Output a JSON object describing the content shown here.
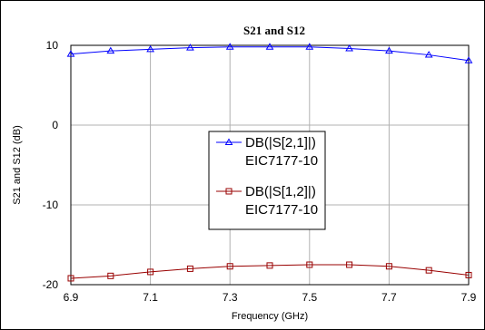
{
  "chart_data": {
    "type": "line",
    "title": "S21 and S12",
    "xlabel": "Frequency (GHz)",
    "ylabel": "S21 and S12 (dB)",
    "xlim": [
      6.9,
      7.9
    ],
    "ylim": [
      -20,
      10
    ],
    "x_ticks": [
      "6.9",
      "7.1",
      "7.3",
      "7.5",
      "7.7",
      "7.9"
    ],
    "y_ticks": [
      "10",
      "0",
      "-10",
      "-20"
    ],
    "grid": true,
    "legend_position": "center",
    "x": [
      6.9,
      7.0,
      7.1,
      7.2,
      7.3,
      7.4,
      7.5,
      7.6,
      7.7,
      7.8,
      7.9
    ],
    "series": [
      {
        "name": "DB(|S[2,1]|)",
        "subname": "EIC7177-10",
        "color": "#0000ff",
        "marker": "triangle",
        "values": [
          8.9,
          9.3,
          9.5,
          9.7,
          9.8,
          9.8,
          9.8,
          9.6,
          9.3,
          8.8,
          8.1
        ]
      },
      {
        "name": "DB(|S[1,2]|)",
        "subname": "EIC7177-10",
        "color": "#990000",
        "marker": "square",
        "values": [
          -19.2,
          -18.9,
          -18.4,
          -18.0,
          -17.7,
          -17.6,
          -17.5,
          -17.5,
          -17.7,
          -18.2,
          -18.8
        ]
      }
    ]
  }
}
